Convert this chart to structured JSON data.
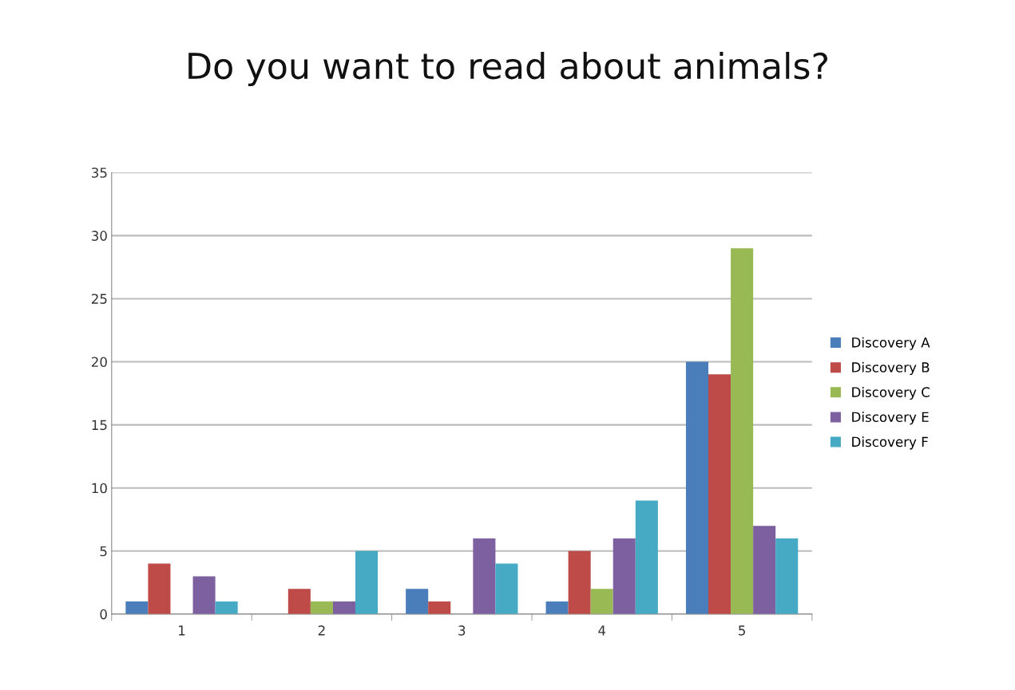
{
  "chart_data": {
    "type": "bar",
    "title": "Do you want to read about animals?",
    "categories": [
      "1",
      "2",
      "3",
      "4",
      "5"
    ],
    "series": [
      {
        "name": "Discovery A",
        "color": "#4a7ebb",
        "values": [
          1,
          0,
          2,
          1,
          20
        ]
      },
      {
        "name": "Discovery B",
        "color": "#be4b48",
        "values": [
          4,
          2,
          1,
          5,
          19
        ]
      },
      {
        "name": "Discovery C",
        "color": "#98b954",
        "values": [
          0,
          1,
          0,
          2,
          29
        ]
      },
      {
        "name": "Discovery E",
        "color": "#7d60a0",
        "values": [
          3,
          1,
          6,
          6,
          7
        ]
      },
      {
        "name": "Discovery F",
        "color": "#46aac5",
        "values": [
          1,
          5,
          4,
          9,
          6
        ]
      }
    ],
    "ylim": [
      0,
      35
    ],
    "yticks": [
      0,
      5,
      10,
      15,
      20,
      25,
      30,
      35
    ],
    "grid": "y",
    "legend": "right"
  }
}
